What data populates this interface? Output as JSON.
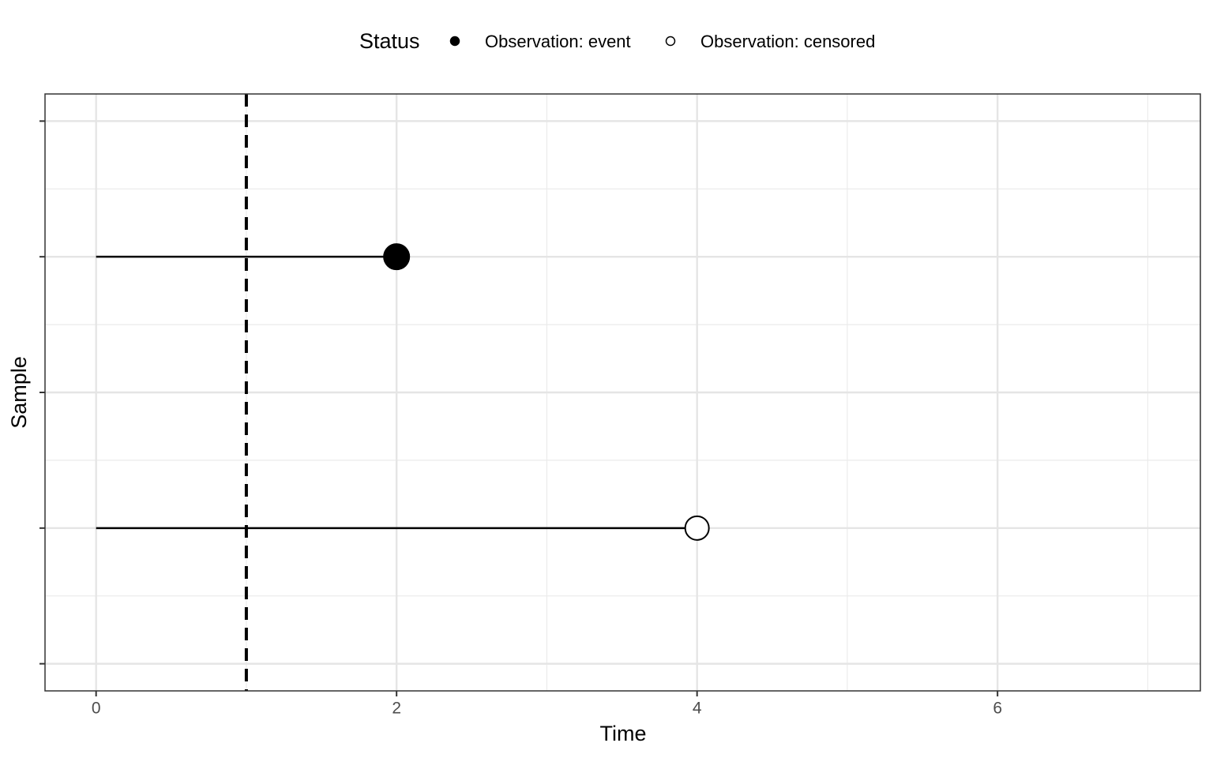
{
  "chart_data": {
    "type": "survival-timeline",
    "x_label": "Time",
    "y_label": "Sample",
    "legend_title": "Status",
    "series": [
      {
        "name": "Observation: event",
        "color": "#000000",
        "marker": "filled",
        "y": [
          3
        ],
        "start": [
          0
        ],
        "values": [
          2
        ]
      },
      {
        "name": "Observation: censored",
        "color": "#000000",
        "marker": "open",
        "y": [
          1
        ],
        "start": [
          0
        ],
        "values": [
          4
        ]
      }
    ],
    "vline": 1,
    "xlim": [
      -0.34,
      7.35
    ],
    "xticks": [
      0,
      2,
      4,
      6
    ],
    "xminor": [
      1,
      3,
      5,
      7
    ],
    "ylim": [
      -0.2,
      4.2
    ],
    "yticks": [
      0,
      1,
      2,
      3,
      4
    ],
    "yminor": [
      0.5,
      1.5,
      2.5,
      3.5
    ],
    "grid": true,
    "legend_position": "top"
  }
}
